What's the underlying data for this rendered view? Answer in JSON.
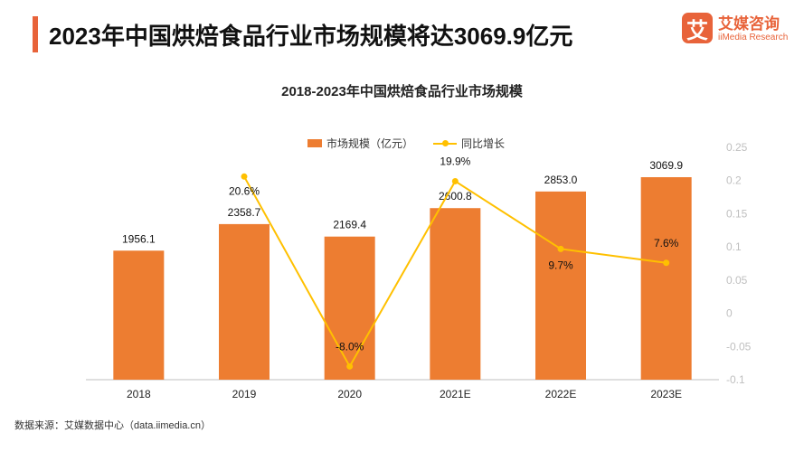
{
  "header": {
    "title": "2023年中国烘焙食品行业市场规模将达3069.9亿元",
    "accent_color": "#e8633a"
  },
  "logo": {
    "mark": "艾",
    "name_cn": "艾媒咨询",
    "name_en": "iiMedia Research"
  },
  "source": "数据来源：艾媒数据中心（data.iimedia.cn）",
  "chart_data": {
    "type": "bar",
    "title": "2018-2023年中国烘焙食品行业市场规模",
    "categories": [
      "2018",
      "2019",
      "2020",
      "2021E",
      "2022E",
      "2023E"
    ],
    "series": [
      {
        "name": "市场规模（亿元）",
        "type": "bar",
        "axis": "left",
        "color": "#ed7d31",
        "values": [
          1956.1,
          2358.7,
          2169.4,
          2600.8,
          2853.0,
          3069.9
        ],
        "labels": [
          "1956.1",
          "2358.7",
          "2169.4",
          "2600.8",
          "2853.0",
          "3069.9"
        ]
      },
      {
        "name": "同比增长",
        "type": "line",
        "axis": "right",
        "color": "#ffc000",
        "values": [
          null,
          0.206,
          -0.08,
          0.199,
          0.097,
          0.076
        ],
        "labels": [
          "",
          "20.6%",
          "-8.0%",
          "19.9%",
          "9.7%",
          "7.6%"
        ]
      }
    ],
    "left_axis_range": [
      0,
      3500
    ],
    "right_axis": {
      "range": [
        -0.1,
        0.25
      ],
      "ticks": [
        "0.25",
        "0.2",
        "0.15",
        "0.1",
        "0.05",
        "0",
        "-0.05",
        "-0.1"
      ],
      "tick_values": [
        0.25,
        0.2,
        0.15,
        0.1,
        0.05,
        0,
        -0.05,
        -0.1
      ]
    },
    "grid": false,
    "legend_position": "top"
  }
}
